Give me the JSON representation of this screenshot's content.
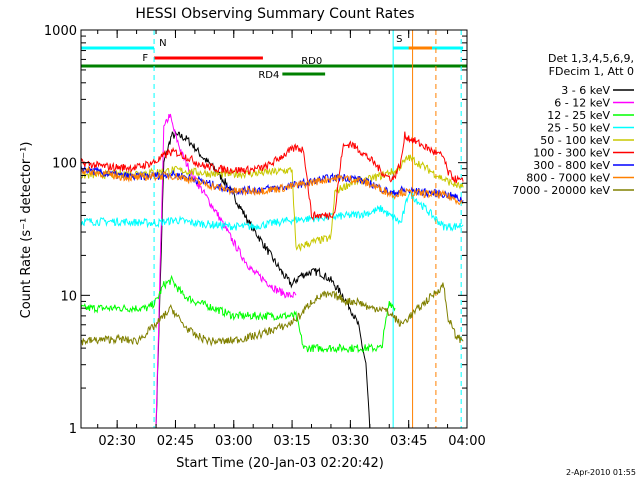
{
  "chart_data": {
    "type": "line",
    "title": "HESSI Observing Summary Count Rates",
    "xlabel": "Start Time (20-Jan-03 02:20:42)",
    "ylabel": "Count Rate (s⁻¹ detector⁻¹)",
    "yscale": "log",
    "ylim": [
      1,
      1000
    ],
    "xlim": [
      "02:20:42",
      "04:00:00"
    ],
    "x_ticks": [
      "02:30",
      "02:45",
      "03:00",
      "03:15",
      "03:30",
      "03:45",
      "04:00"
    ],
    "y_ticks": [
      "1",
      "10",
      "100",
      "1000"
    ],
    "legend_header": [
      "Det 1,3,4,5,6,9,",
      "FDecim 1, Att 0"
    ],
    "legend_position": "right",
    "footer_date": "2-Apr-2010 01:55",
    "flags": [
      {
        "label": "N",
        "color": "#00ffff",
        "start": "02:20:42",
        "end": "02:39:30",
        "row": 1
      },
      {
        "label": "S",
        "color": "#00ffff",
        "start": "03:41:00",
        "end": "03:59:00",
        "row": 1
      },
      {
        "label": "F",
        "color": "#ff0000",
        "start": "02:39:30",
        "end": "03:07:30",
        "row": 2
      },
      {
        "label": "",
        "color": "#ff8000",
        "start": "03:45:00",
        "end": "03:51:00",
        "row": 1
      },
      {
        "label": "RD0",
        "color": "#008000",
        "start": "02:20:42",
        "end": "04:00:00",
        "row": 3
      },
      {
        "label": "RD4",
        "color": "#008000",
        "start": "03:12:30",
        "end": "03:23:30",
        "row": 4
      }
    ],
    "vlines": [
      {
        "time": "02:39:30",
        "color": "#00ffff",
        "dash": true
      },
      {
        "time": "03:41:00",
        "color": "#00ffff",
        "dash": false
      },
      {
        "time": "03:46:00",
        "color": "#ff8000",
        "dash": false
      },
      {
        "time": "03:52:00",
        "color": "#ff8000",
        "dash": true
      },
      {
        "time": "03:58:30",
        "color": "#00ffff",
        "dash": true
      }
    ],
    "series": [
      {
        "name": "3 - 6 keV",
        "color": "#000000",
        "x": [
          "02:20:42",
          "02:38:00",
          "02:40:00",
          "02:42:00",
          "02:44:00",
          "02:46:00",
          "02:48:00",
          "02:50:00",
          "02:52:00",
          "02:55:00",
          "02:58:00",
          "03:01:00",
          "03:04:00",
          "03:07:00",
          "03:10:00",
          "03:13:00",
          "03:15:00",
          "03:17:00",
          "03:20:00",
          "03:22:00",
          "03:25:00",
          "03:28:00",
          "03:30:00",
          "03:32:00",
          "03:34:00",
          "03:35:00"
        ],
        "y": [
          1,
          1,
          1,
          100,
          160,
          160,
          150,
          130,
          110,
          90,
          70,
          50,
          35,
          26,
          19,
          14,
          12,
          14,
          15,
          15,
          13,
          10,
          8,
          6,
          3,
          1
        ]
      },
      {
        "name": "6 - 12 keV",
        "color": "#ff00ff",
        "x": [
          "02:20:42",
          "02:38:00",
          "02:40:00",
          "02:42:00",
          "02:43:30",
          "02:45:00",
          "02:47:00",
          "02:50:00",
          "02:53:00",
          "02:56:00",
          "02:59:00",
          "03:02:00",
          "03:05:00",
          "03:08:00",
          "03:11:00",
          "03:14:00",
          "03:16:00"
        ],
        "y": [
          1,
          1,
          1,
          180,
          230,
          160,
          110,
          75,
          55,
          40,
          28,
          20,
          15,
          13,
          11,
          10,
          10
        ]
      },
      {
        "name": "12 - 25 keV",
        "color": "#00ff00",
        "x": [
          "02:20:42",
          "02:30:00",
          "02:38:00",
          "02:40:00",
          "02:42:00",
          "02:44:00",
          "02:47:00",
          "02:50:00",
          "02:55:00",
          "03:00:00",
          "03:05:00",
          "03:10:00",
          "03:14:00",
          "03:16:00",
          "03:18:00",
          "03:20:00",
          "03:22:00",
          "03:24:00",
          "03:25:00",
          "03:27:00",
          "03:30:00",
          "03:33:00",
          "03:35:00",
          "03:38:00",
          "03:40:00",
          "03:41:30"
        ],
        "y": [
          8,
          8,
          8,
          9,
          12,
          13,
          10,
          9,
          8,
          7,
          7,
          7,
          7,
          7,
          4,
          4,
          4,
          4,
          4,
          4,
          4,
          4,
          4,
          4,
          9,
          8
        ]
      },
      {
        "name": "25 - 50 keV",
        "color": "#00ffff",
        "x": [
          "02:20:42",
          "02:30:00",
          "02:40:00",
          "02:45:00",
          "02:50:00",
          "02:55:00",
          "03:00:00",
          "03:05:00",
          "03:10:00",
          "03:15:00",
          "03:20:00",
          "03:25:00",
          "03:30:00",
          "03:35:00",
          "03:38:00",
          "03:40:00",
          "03:41:30",
          "03:43:00",
          "03:44:00",
          "03:45:00",
          "03:54:00",
          "03:57:00",
          "03:59:00"
        ],
        "y": [
          36,
          36,
          35,
          37,
          35,
          34,
          33,
          33,
          35,
          37,
          38,
          39,
          40,
          42,
          45,
          40,
          38,
          35,
          45,
          60,
          33,
          33,
          34
        ]
      },
      {
        "name": "50 - 100 keV",
        "color": "#c8c800",
        "x": [
          "02:20:42",
          "02:30:00",
          "02:40:00",
          "02:45:00",
          "02:50:00",
          "02:55:00",
          "03:00:00",
          "03:05:00",
          "03:10:00",
          "03:15:00",
          "03:16:00",
          "03:18:00",
          "03:22:00",
          "03:25:00",
          "03:26:00",
          "03:28:00",
          "03:30:00",
          "03:35:00",
          "03:38:00",
          "03:40:00",
          "03:41:30",
          "03:43:00",
          "03:45:00",
          "03:54:00",
          "03:57:00",
          "03:59:00"
        ],
        "y": [
          80,
          82,
          85,
          88,
          85,
          82,
          82,
          83,
          85,
          88,
          22,
          24,
          26,
          27,
          60,
          65,
          70,
          75,
          80,
          85,
          85,
          95,
          110,
          75,
          68,
          65
        ]
      },
      {
        "name": "100 - 300 keV",
        "color": "#ff0000",
        "x": [
          "02:20:42",
          "02:25:00",
          "02:30:00",
          "02:35:00",
          "02:40:00",
          "02:43:00",
          "02:45:00",
          "02:48:00",
          "02:52:00",
          "02:56:00",
          "03:00:00",
          "03:04:00",
          "03:08:00",
          "03:10:00",
          "03:12:00",
          "03:14:00",
          "03:16:00",
          "03:18:00",
          "03:20:00",
          "03:24:00",
          "03:26:00",
          "03:28:00",
          "03:30:00",
          "03:33:00",
          "03:36:00",
          "03:39:00",
          "03:41:00",
          "03:43:00",
          "03:44:00",
          "03:54:00",
          "03:55:00",
          "03:57:00",
          "03:59:00"
        ],
        "y": [
          100,
          95,
          92,
          92,
          102,
          118,
          120,
          110,
          95,
          90,
          88,
          88,
          92,
          100,
          110,
          120,
          130,
          125,
          40,
          40,
          42,
          130,
          140,
          120,
          100,
          80,
          75,
          100,
          160,
          110,
          85,
          75,
          72
        ]
      },
      {
        "name": "300 - 800 keV",
        "color": "#0000ff",
        "x": [
          "02:20:42",
          "02:25:00",
          "02:30:00",
          "02:35:00",
          "02:40:00",
          "02:44:00",
          "02:48:00",
          "02:52:00",
          "02:56:00",
          "03:00:00",
          "03:04:00",
          "03:08:00",
          "03:12:00",
          "03:16:00",
          "03:20:00",
          "03:24:00",
          "03:28:00",
          "03:32:00",
          "03:36:00",
          "03:39:00",
          "03:41:00",
          "03:43:00",
          "03:54:00",
          "03:57:00",
          "03:59:00"
        ],
        "y": [
          90,
          85,
          80,
          78,
          80,
          82,
          78,
          72,
          66,
          62,
          62,
          63,
          65,
          68,
          72,
          76,
          78,
          75,
          68,
          62,
          58,
          62,
          58,
          55,
          52
        ]
      },
      {
        "name": "800 - 7000 keV",
        "color": "#ff8000",
        "x": [
          "02:20:42",
          "02:25:00",
          "02:30:00",
          "02:35:00",
          "02:40:00",
          "02:44:00",
          "02:48:00",
          "02:52:00",
          "02:56:00",
          "03:00:00",
          "03:04:00",
          "03:08:00",
          "03:12:00",
          "03:16:00",
          "03:20:00",
          "03:24:00",
          "03:28:00",
          "03:32:00",
          "03:36:00",
          "03:39:00",
          "03:41:00",
          "03:43:00",
          "03:54:00",
          "03:57:00",
          "03:59:00"
        ],
        "y": [
          88,
          84,
          79,
          77,
          79,
          80,
          76,
          70,
          65,
          61,
          61,
          62,
          64,
          67,
          71,
          75,
          77,
          74,
          67,
          61,
          57,
          60,
          57,
          53,
          50
        ]
      },
      {
        "name": "7000 - 20000 keV",
        "color": "#808000",
        "x": [
          "02:20:42",
          "02:25:00",
          "02:30:00",
          "02:35:00",
          "02:40:00",
          "02:42:00",
          "02:44:00",
          "02:47:00",
          "02:50:00",
          "02:54:00",
          "02:58:00",
          "03:02:00",
          "03:06:00",
          "03:10:00",
          "03:14:00",
          "03:17:00",
          "03:20:00",
          "03:23:00",
          "03:26:00",
          "03:29:00",
          "03:32:00",
          "03:35:00",
          "03:38:00",
          "03:41:00",
          "03:43:00",
          "03:54:00",
          "03:55:00",
          "03:57:00",
          "03:59:00"
        ],
        "y": [
          4.5,
          4.6,
          4.7,
          4.5,
          6,
          7,
          8,
          6,
          5,
          4.5,
          4.5,
          4.7,
          5,
          5.5,
          6,
          7,
          9,
          10,
          10,
          9,
          9,
          8,
          8,
          7,
          6,
          12,
          7,
          5,
          4.5
        ]
      }
    ]
  }
}
